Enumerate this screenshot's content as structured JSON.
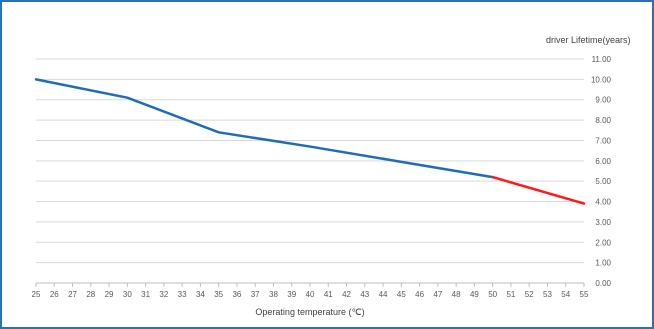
{
  "colors": {
    "frame_border": "#2f6fb3",
    "background": "#ffffff",
    "gridline": "#d9d9d9",
    "axis": "#bfbfbf",
    "tick_text": "#595959",
    "series_main": "#1f6db5",
    "series_extrapolated": "#ff1a1a"
  },
  "chart_data": {
    "type": "line",
    "title": "",
    "xlabel": "Operating temperature (℃)",
    "ylabel": "driver Lifetime(years)",
    "xlim": [
      25,
      55
    ],
    "ylim": [
      0,
      11
    ],
    "x_ticks": [
      25,
      26,
      27,
      28,
      29,
      30,
      31,
      32,
      33,
      34,
      35,
      36,
      37,
      38,
      39,
      40,
      41,
      42,
      43,
      44,
      45,
      46,
      47,
      48,
      49,
      50,
      51,
      52,
      53,
      54,
      55
    ],
    "y_ticks": [
      "0.00",
      "1.00",
      "2.00",
      "3.00",
      "4.00",
      "5.00",
      "6.00",
      "7.00",
      "8.00",
      "9.00",
      "10.00",
      "11.00"
    ],
    "y_axis_position": "right",
    "grid": {
      "horizontal": true,
      "vertical": false
    },
    "legend": "none",
    "series": [
      {
        "x": [
          25,
          30,
          35,
          40,
          45,
          50
        ],
        "y": [
          10.0,
          9.1,
          7.4,
          6.7,
          5.95,
          5.2
        ],
        "color": "#1f6db5"
      },
      {
        "x": [
          50,
          55
        ],
        "y": [
          5.2,
          3.9
        ],
        "color": "#ff1a1a"
      }
    ]
  }
}
